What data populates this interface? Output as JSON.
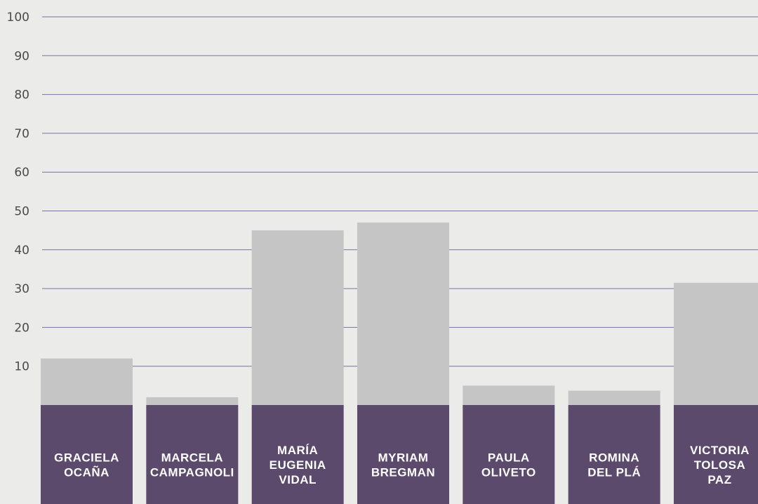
{
  "chart_data": {
    "type": "bar",
    "title": "",
    "xlabel": "",
    "ylabel": "",
    "ylim": [
      0,
      100
    ],
    "yticks": [
      10,
      20,
      30,
      40,
      50,
      60,
      70,
      80,
      90,
      100
    ],
    "grid": true,
    "categories": [
      [
        "GRACIELA",
        "OCAÑA"
      ],
      [
        "MARCELA",
        "CAMPAGNOLI"
      ],
      [
        "MARÍA",
        "EUGENIA",
        "VIDAL"
      ],
      [
        "MYRIAM",
        "BREGMAN"
      ],
      [
        "PAULA",
        "OLIVETO"
      ],
      [
        "ROMINA",
        "DEL PLÁ"
      ],
      [
        "VICTORIA",
        "TOLOSA",
        "PAZ"
      ]
    ],
    "values": [
      12,
      2,
      45,
      47,
      5,
      3.7,
      31.5
    ],
    "colors": {
      "bar": "#c6c5c6",
      "label_box": "#5b4a6c",
      "grid": "#7b739c",
      "background": "#ebebea"
    }
  }
}
